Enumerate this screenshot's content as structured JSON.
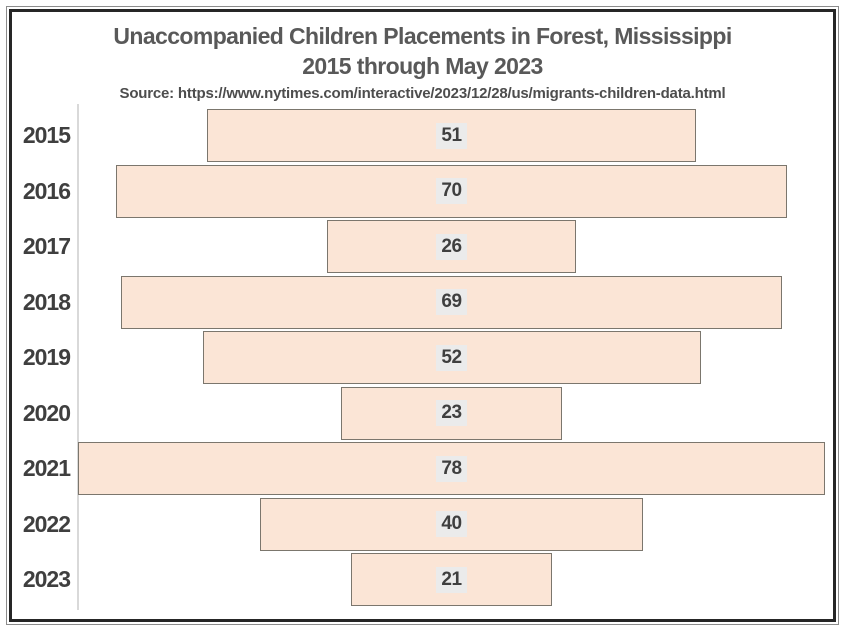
{
  "title": {
    "line1": "Unaccompanied Children Placements in Forest, Mississippi",
    "line2": "2015 through May 2023"
  },
  "source": {
    "text": "Source: https://www.nytimes.com/interactive/2023/12/28/us/migrants-children-data.html"
  },
  "chart_data": {
    "type": "bar",
    "orientation": "horizontal",
    "style": "centered-funnel",
    "title": "Unaccompanied Children Placements in Forest, Mississippi 2015 through May 2023",
    "categories": [
      "2015",
      "2016",
      "2017",
      "2018",
      "2019",
      "2020",
      "2021",
      "2022",
      "2023"
    ],
    "values": [
      51,
      70,
      26,
      69,
      52,
      23,
      78,
      40,
      21
    ],
    "xlabel": "",
    "ylabel": "",
    "xlim": [
      0,
      78
    ],
    "grid": false,
    "legend": "none",
    "data_labels": "inside-center"
  },
  "colors": {
    "bar_fill": "#fbe5d6",
    "bar_border": "#7b766d",
    "label_bg": "#ebebeb",
    "text": "#3f3f3f",
    "title_text": "#595959",
    "source_text": "#4d4d4d",
    "axis_line": "#d9d9d9",
    "border_outer": "#8c8c8c",
    "border_inner": "#262626"
  }
}
